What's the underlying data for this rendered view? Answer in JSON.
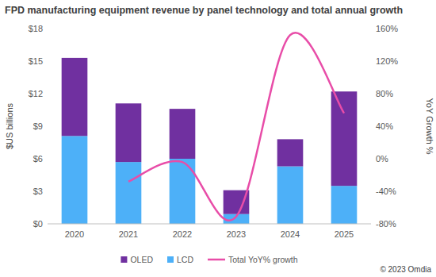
{
  "chart_data": {
    "type": "bar",
    "title": "FPD manufacturing equipment revenue by panel technology and total annual growth",
    "y_label": "$US billions",
    "y2_label": "YoY Growth %",
    "source": "© 2023 Omdia",
    "categories": [
      "2020",
      "2021",
      "2022",
      "2023",
      "2024",
      "2025"
    ],
    "stacked": true,
    "grid": false,
    "legend": "bottom",
    "ylim": [
      0,
      18
    ],
    "yticks": [
      {
        "value": 0,
        "label": "$0"
      },
      {
        "value": 3,
        "label": "$3"
      },
      {
        "value": 6,
        "label": "$6"
      },
      {
        "value": 9,
        "label": "$9"
      },
      {
        "value": 12,
        "label": "$12"
      },
      {
        "value": 15,
        "label": "$15"
      },
      {
        "value": 18,
        "label": "$18"
      }
    ],
    "y2lim": [
      -80,
      160
    ],
    "y2ticks": [
      {
        "value": -80,
        "label": "-80%"
      },
      {
        "value": -40,
        "label": "-40%"
      },
      {
        "value": 0,
        "label": "0%"
      },
      {
        "value": 40,
        "label": "40%"
      },
      {
        "value": 80,
        "label": "80%"
      },
      {
        "value": 120,
        "label": "120%"
      },
      {
        "value": 160,
        "label": "160%"
      }
    ],
    "series": [
      {
        "name": "LCD",
        "color": "#4DB0F8",
        "values": [
          8.1,
          5.7,
          6.0,
          0.9,
          5.3,
          3.5
        ]
      },
      {
        "name": "OLED",
        "color": "#7030A0",
        "values": [
          7.2,
          5.4,
          4.6,
          2.2,
          2.5,
          8.7
        ]
      },
      {
        "name": "Total YoY% growth",
        "type": "line",
        "axis": "y2",
        "color": "#E84DA8",
        "line_style": "smooth",
        "values": [
          null,
          -28,
          -4,
          -71,
          152,
          56
        ]
      }
    ]
  }
}
